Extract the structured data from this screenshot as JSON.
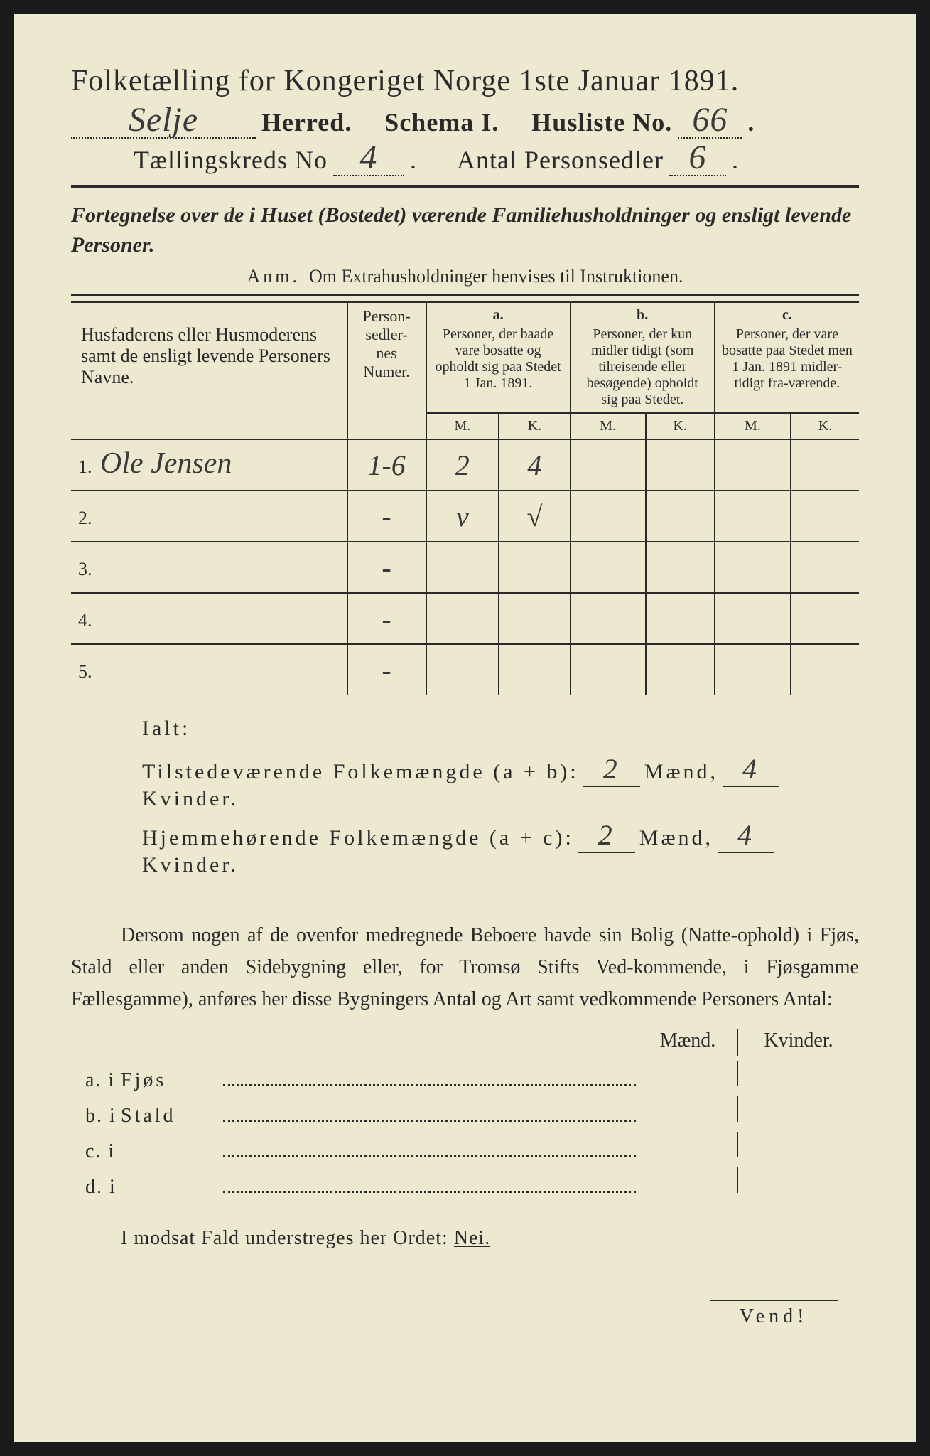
{
  "colors": {
    "paper": "#ede8d0",
    "ink": "#2a2a2a",
    "frame": "#1a1a1a",
    "handwriting": "#3a3a3a"
  },
  "typography": {
    "title_fontsize_pt": 42,
    "header_fontsize_pt": 36,
    "body_fontsize_pt": 28,
    "table_header_fontsize_pt": 20,
    "handwritten_fontsize_pt": 48
  },
  "header": {
    "title": "Folketælling for Kongeriget Norge 1ste Januar 1891.",
    "herred_value": "Selje",
    "herred_label": "Herred.",
    "schema_label": "Schema I.",
    "husliste_label": "Husliste No.",
    "husliste_value": "66",
    "kreds_label": "Tællingskreds No",
    "kreds_value": "4",
    "personsedler_label": "Antal Personsedler",
    "personsedler_value": "6"
  },
  "subtitle": "Fortegnelse over de i Huset (Bostedet) værende Familiehusholdninger og ensligt levende Personer.",
  "anm": {
    "label": "Anm.",
    "text": "Om Extrahusholdninger henvises til Instruktionen."
  },
  "table": {
    "col_name": "Husfaderens eller Husmoderens samt de ensligt levende Personers Navne.",
    "col_num": "Person-\nsedler-\nnes\nNumer.",
    "col_a": {
      "label": "a.",
      "text": "Personer, der baade vare bosatte og opholdt sig paa Stedet 1 Jan. 1891."
    },
    "col_b": {
      "label": "b.",
      "text": "Personer, der kun midler tidigt (som tilreisende eller besøgende) opholdt sig paa Stedet."
    },
    "col_c": {
      "label": "c.",
      "text": "Personer, der vare bosatte paa Stedet men 1 Jan. 1891 midler-tidigt fra-værende."
    },
    "mk": {
      "m": "M.",
      "k": "K."
    },
    "rows": [
      {
        "n": "1.",
        "name": "Ole Jensen",
        "num": "1-6",
        "a_m": "2",
        "a_k": "4",
        "b_m": "",
        "b_k": "",
        "c_m": "",
        "c_k": ""
      },
      {
        "n": "2.",
        "name": "",
        "num": "-",
        "a_m": "v",
        "a_k": "√",
        "b_m": "",
        "b_k": "",
        "c_m": "",
        "c_k": ""
      },
      {
        "n": "3.",
        "name": "",
        "num": "-",
        "a_m": "",
        "a_k": "",
        "b_m": "",
        "b_k": "",
        "c_m": "",
        "c_k": ""
      },
      {
        "n": "4.",
        "name": "",
        "num": "-",
        "a_m": "",
        "a_k": "",
        "b_m": "",
        "b_k": "",
        "c_m": "",
        "c_k": ""
      },
      {
        "n": "5.",
        "name": "",
        "num": "-",
        "a_m": "",
        "a_k": "",
        "b_m": "",
        "b_k": "",
        "c_m": "",
        "c_k": ""
      }
    ]
  },
  "ialt": {
    "title": "Ialt:",
    "line1_label": "Tilstedeværende Folkemængde (a + b):",
    "line2_label": "Hjemmehørende Folkemængde (a + c):",
    "maend": "Mænd,",
    "kvinder": "Kvinder.",
    "line1_m": "2",
    "line1_k": "4",
    "line2_m": "2",
    "line2_k": "4"
  },
  "dersom": "Dersom nogen af de ovenfor medregnede Beboere havde sin Bolig (Natte-ophold) i Fjøs, Stald eller anden Sidebygning eller, for Tromsø Stifts Ved-kommende, i Fjøsgamme Fællesgamme), anføres her disse Bygningers Antal og Art samt vedkommende Personers Antal:",
  "buildings": {
    "header_m": "Mænd.",
    "header_k": "Kvinder.",
    "rows": [
      {
        "lbl": "a. i",
        "txt": "Fjøs"
      },
      {
        "lbl": "b. i",
        "txt": "Stald"
      },
      {
        "lbl": "c. i",
        "txt": ""
      },
      {
        "lbl": "d. i",
        "txt": ""
      }
    ]
  },
  "modsat": {
    "text": "I modsat Fald understreges her Ordet:",
    "nej": "Nei."
  },
  "vend": "Vend!"
}
